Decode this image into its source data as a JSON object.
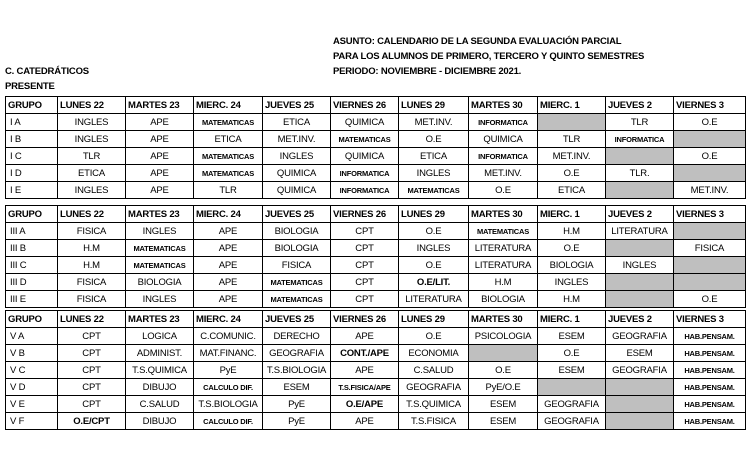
{
  "header": {
    "asunto": "ASUNTO: CALENDARIO DE LA SEGUNDA EVALUACIÓN PARCIAL",
    "line2": "PARA LOS ALUMNOS DE PRIMERO, TERCERO Y  QUINTO SEMESTRES",
    "periodo": "PERIODO: NOVIEMBRE - DICIEMBRE 2021.",
    "recipient": "C. CATEDRÁTICOS",
    "presente": "PRESENTE"
  },
  "columns": [
    "GRUPO",
    "LUNES 22",
    "MARTES 23",
    "MIERC. 24",
    "JUEVES 25",
    "VIERNES 26",
    "LUNES 29",
    "MARTES 30",
    "MIERC. 1",
    "JUEVES 2",
    "VIERNES 3"
  ],
  "tables": [
    {
      "rows": [
        [
          "I A",
          "INGLES",
          "APE",
          "MATEMATICAS",
          "ETICA",
          "QUIMICA",
          "MET.INV.",
          "INFORMATICA",
          "",
          "TLR",
          "O.E"
        ],
        [
          "I B",
          "INGLES",
          "APE",
          "ETICA",
          "MET.INV.",
          "MATEMATICAS",
          "O.E",
          "QUIMICA",
          "TLR",
          "INFORMATICA",
          ""
        ],
        [
          "I C",
          "TLR",
          "APE",
          "MATEMATICAS",
          "INGLES",
          "QUIMICA",
          "ETICA",
          "INFORMATICA",
          "MET.INV.",
          "",
          "O.E"
        ],
        [
          "I D",
          "ETICA",
          "APE",
          "MATEMATICAS",
          "QUIMICA",
          "INFORMATICA",
          "INGLES",
          "MET.INV.",
          "O.E",
          "TLR.",
          ""
        ],
        [
          "I E",
          "INGLES",
          "APE",
          "TLR",
          "QUIMICA",
          "INFORMATICA",
          "MATEMATICAS",
          "O.E",
          "ETICA",
          "",
          "MET.INV."
        ]
      ]
    },
    {
      "rows": [
        [
          "III A",
          "FISICA",
          "INGLES",
          "APE",
          "BIOLOGIA",
          "CPT",
          "O.E",
          "MATEMATICAS",
          "H.M",
          "LITERATURA",
          ""
        ],
        [
          "III B",
          "H.M",
          "MATEMATICAS",
          "APE",
          "BIOLOGIA",
          "CPT",
          "INGLES",
          "LITERATURA",
          "O.E",
          "",
          "FISICA"
        ],
        [
          "III C",
          "H.M",
          "MATEMATICAS",
          "APE",
          "FISICA",
          "CPT",
          "O.E",
          "LITERATURA",
          "BIOLOGIA",
          "INGLES",
          ""
        ],
        [
          "III D",
          "FISICA",
          "BIOLOGIA",
          "APE",
          "MATEMATICAS",
          "CPT",
          "O.E/LIT.",
          "H.M",
          "INGLES",
          "",
          ""
        ],
        [
          "III E",
          "FISICA",
          "INGLES",
          "APE",
          "MATEMATICAS",
          "CPT",
          "LITERATURA",
          "BIOLOGIA",
          "H.M",
          "",
          "O.E"
        ]
      ]
    },
    {
      "rows": [
        [
          "V A",
          "CPT",
          "LOGICA",
          "C.COMUNIC.",
          "DERECHO",
          "APE",
          "O.E",
          "PSICOLOGIA",
          "ESEM",
          "GEOGRAFIA",
          "HAB.PENSAM."
        ],
        [
          "V B",
          "CPT",
          "ADMINIST.",
          "MAT.FINANC.",
          "GEOGRAFIA",
          "CONT./APE",
          "ECONOMIA",
          "",
          "O.E",
          "ESEM",
          "HAB.PENSAM."
        ],
        [
          "V C",
          "CPT",
          "T.S.QUIMICA",
          "PyE",
          "T.S.BIOLOGIA",
          "APE",
          "C.SALUD",
          "O.E",
          "ESEM",
          "GEOGRAFIA",
          "HAB.PENSAM."
        ],
        [
          "V D",
          "CPT",
          "DIBUJO",
          "CALCULO DIF.",
          "ESEM",
          "T.S.FISICA/APE",
          "GEOGRAFIA",
          "PyE/O.E",
          "",
          "",
          "HAB.PENSAM."
        ],
        [
          "V E",
          "CPT",
          "C.SALUD",
          "T.S.BIOLOGIA",
          "PyE",
          "O.E/APE",
          "T.S.QUIMICA",
          "ESEM",
          "GEOGRAFIA",
          "",
          "HAB.PENSAM."
        ],
        [
          "V F",
          "O.E/CPT",
          "DIBUJO",
          "CALCULO DIF.",
          "PyE",
          "APE",
          "T.S.FISICA",
          "ESEM",
          "GEOGRAFIA",
          "",
          "HAB.PENSAM."
        ]
      ]
    }
  ],
  "colors": {
    "empty_cell": "#bfbfbf"
  }
}
